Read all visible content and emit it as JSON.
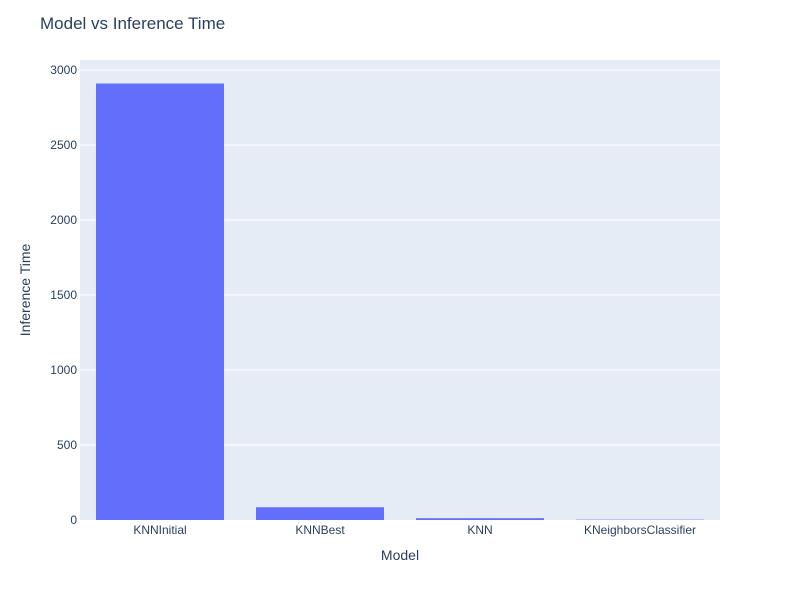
{
  "chart_data": {
    "type": "bar",
    "title": "Model vs Inference Time",
    "xlabel": "Model",
    "ylabel": "Inference Time",
    "categories": [
      "KNNInitial",
      "KNNBest",
      "KNN",
      "KNeighborsClassifier"
    ],
    "values": [
      2910,
      85,
      12,
      2
    ],
    "ylim": [
      0,
      3000
    ],
    "yticks": [
      0,
      500,
      1000,
      1500,
      2000,
      2500,
      3000
    ],
    "ytick_labels": [
      "0",
      "500",
      "1000",
      "1500",
      "2000",
      "2500",
      "3000"
    ],
    "grid": true,
    "legend": "none",
    "colors": {
      "bar": "#636efa",
      "plot_background": "#e5ecf6",
      "gridline": "#ffffff",
      "text": "#2a3f5f"
    }
  }
}
